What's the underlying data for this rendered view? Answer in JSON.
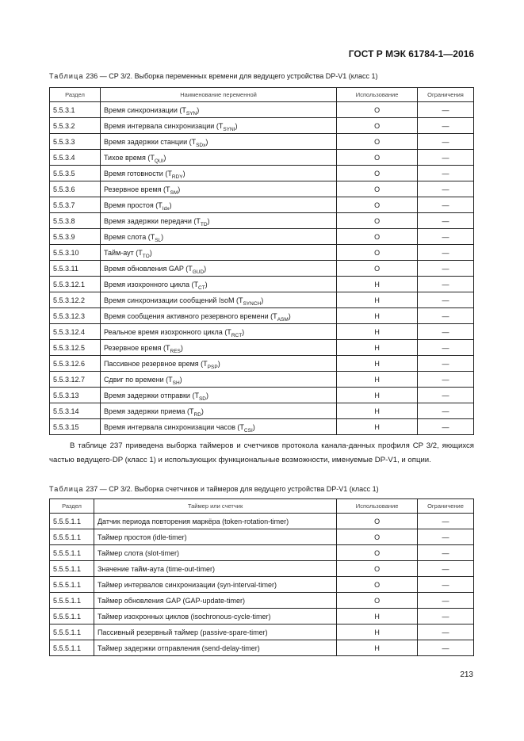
{
  "header": "ГОСТ Р МЭК 61784-1—2016",
  "table236": {
    "caption_label": "Таблица",
    "caption_text": "236 — CP 3/2. Выборка переменных времени для ведущего устройства DP-V1 (класс 1)",
    "columns": [
      "Раздел",
      "Наименование переменной",
      "Использование",
      "Ограничения"
    ],
    "rows": [
      {
        "section": "5.5.3.1",
        "name": "Время синхронизации (T",
        "sub": "SYN",
        "usage": "O",
        "limit": "—"
      },
      {
        "section": "5.5.3.2",
        "name": "Время интервала синхронизации (T",
        "sub": "SYNI",
        "usage": "O",
        "limit": "—"
      },
      {
        "section": "5.5.3.3",
        "name": "Время задержки станции (T",
        "sub": "SDx",
        "usage": "O",
        "limit": "—"
      },
      {
        "section": "5.5.3.4",
        "name": "Тихое время (T",
        "sub": "QUI",
        "usage": "O",
        "limit": "—"
      },
      {
        "section": "5.5.3.5",
        "name": "Время готовности (T",
        "sub": "RDY",
        "usage": "O",
        "limit": "—"
      },
      {
        "section": "5.5.3.6",
        "name": "Резервное время (T",
        "sub": "SM",
        "usage": "O",
        "limit": "—"
      },
      {
        "section": "5.5.3.7",
        "name": "Время простоя (T",
        "sub": "Idx",
        "usage": "O",
        "limit": "—"
      },
      {
        "section": "5.5.3.8",
        "name": "Время задержки передачи (T",
        "sub": "TD",
        "usage": "O",
        "limit": "—"
      },
      {
        "section": "5.5.3.9",
        "name": "Время слота (T",
        "sub": "SL",
        "usage": "O",
        "limit": "—"
      },
      {
        "section": "5.5.3.10",
        "name": "Тайм-аут (T",
        "sub": "TO",
        "usage": "O",
        "limit": "—"
      },
      {
        "section": "5.5.3.11",
        "name": "Время обновления GAP (T",
        "sub": "GUD",
        "usage": "O",
        "limit": "—"
      },
      {
        "section": "5.5.3.12.1",
        "name": "Время изохронного цикла (T",
        "sub": "CT",
        "usage": "H",
        "limit": "—"
      },
      {
        "section": "5.5.3.12.2",
        "name": "Время синхронизации сообщений IsoM (T",
        "sub": "SYNCH",
        "usage": "H",
        "limit": "—"
      },
      {
        "section": "5.5.3.12.3",
        "name": "Время сообщения активного резервного времени (T",
        "sub": "ASM",
        "usage": "H",
        "limit": "—"
      },
      {
        "section": "5.5.3.12.4",
        "name": "Реальное время изохронного цикла (T",
        "sub": "RCT",
        "usage": "H",
        "limit": "—"
      },
      {
        "section": "5.5.3.12.5",
        "name": "Резервное время (T",
        "sub": "RES",
        "usage": "H",
        "limit": "—"
      },
      {
        "section": "5.5.3.12.6",
        "name": "Пассивное резервное время (T",
        "sub": "PSP",
        "usage": "H",
        "limit": "—"
      },
      {
        "section": "5.5.3.12.7",
        "name": "Сдвиг по времени (T",
        "sub": "SH",
        "usage": "H",
        "limit": "—"
      },
      {
        "section": "5.5.3.13",
        "name": "Время задержки отправки (T",
        "sub": "SD",
        "usage": "H",
        "limit": "—"
      },
      {
        "section": "5.5.3.14",
        "name": "Время задержки приема (T",
        "sub": "RD",
        "usage": "H",
        "limit": "—"
      },
      {
        "section": "5.5.3.15",
        "name": "Время интервала синхронизации часов (T",
        "sub": "CSI",
        "usage": "H",
        "limit": "—"
      }
    ]
  },
  "paragraph": "В таблице 237 приведена выборка таймеров и счетчиков протокола канала-данных профиля CP 3/2, яющихся частью ведущего-DP (класс 1) и использующих функциональные возможности, имену­емые DP-V1, и опции.",
  "table237": {
    "caption_label": "Таблица",
    "caption_text": "237 — CP 3/2. Выборка счетчиков и таймеров для ведущего устройства DP-V1 (класс 1)",
    "columns": [
      "Раздел",
      "Таймер или счетчик",
      "Использование",
      "Ограничение"
    ],
    "rows": [
      {
        "section": "5.5.5.1.1",
        "name": "Датчик периода повторения маркёра (token-rotation-timer)",
        "usage": "O",
        "limit": "—"
      },
      {
        "section": "5.5.5.1.1",
        "name": "Таймер простоя (idle-timer)",
        "usage": "O",
        "limit": "—"
      },
      {
        "section": "5.5.5.1.1",
        "name": "Таймер слота (slot-timer)",
        "usage": "O",
        "limit": "—"
      },
      {
        "section": "5.5.5.1.1",
        "name": "Значение тайм-аута (time-out-timer)",
        "usage": "O",
        "limit": "—"
      },
      {
        "section": "5.5.5.1.1",
        "name": "Таймер интервалов синхронизации (syn-interval-timer)",
        "usage": "O",
        "limit": "—"
      },
      {
        "section": "5.5.5.1.1",
        "name": "Таймер обновления GAP (GAP-update-timer)",
        "usage": "O",
        "limit": "—"
      },
      {
        "section": "5.5.5.1.1",
        "name": "Таймер изохронных циклов (isochronous-cycle-timer)",
        "usage": "H",
        "limit": "—"
      },
      {
        "section": "5.5.5.1.1",
        "name": "Пассивный резервный таймер (passive-spare-timer)",
        "usage": "H",
        "limit": "—"
      },
      {
        "section": "5.5.5.1.1",
        "name": "Таймер задержки отправления (send-delay-timer)",
        "usage": "H",
        "limit": "—"
      }
    ]
  },
  "page_number": "213"
}
